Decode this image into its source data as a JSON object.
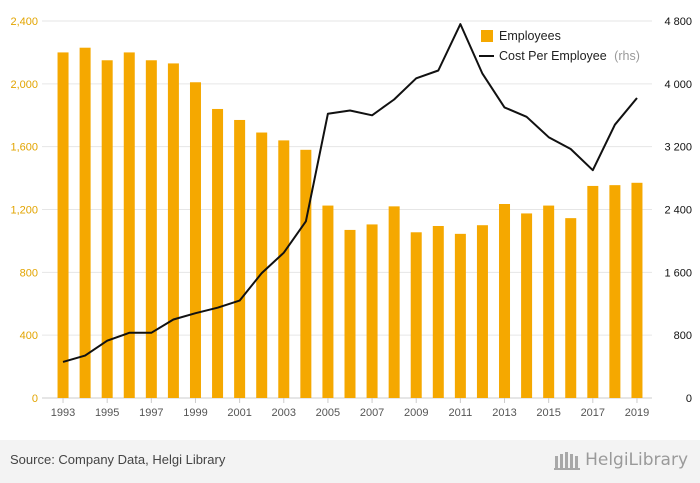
{
  "chart_data": {
    "type": "bar",
    "categories": [
      "1993",
      "1994",
      "1995",
      "1996",
      "1997",
      "1998",
      "1999",
      "2000",
      "2001",
      "2002",
      "2003",
      "2004",
      "2005",
      "2006",
      "2007",
      "2008",
      "2009",
      "2010",
      "2011",
      "2012",
      "2013",
      "2014",
      "2015",
      "2016",
      "2017",
      "2018",
      "2019"
    ],
    "x_tick_labels": [
      "1993",
      "1995",
      "1997",
      "1999",
      "2001",
      "2003",
      "2005",
      "2007",
      "2009",
      "2011",
      "2013",
      "2015",
      "2017",
      "2019"
    ],
    "series": [
      {
        "name": "Employees",
        "type": "bar",
        "axis": "left",
        "color": "#f5a800",
        "values": [
          2200,
          2230,
          2150,
          2200,
          2150,
          2130,
          2010,
          1840,
          1770,
          1690,
          1640,
          1580,
          1225,
          1070,
          1105,
          1220,
          1055,
          1095,
          1045,
          1100,
          1235,
          1175,
          1225,
          1145,
          1350,
          1355,
          1370
        ]
      },
      {
        "name": "Cost Per Employee",
        "name_suffix": "(rhs)",
        "type": "line",
        "axis": "right",
        "color": "#111111",
        "values": [
          460,
          540,
          730,
          830,
          830,
          1000,
          1080,
          1150,
          1240,
          1590,
          1850,
          2250,
          3620,
          3660,
          3600,
          3800,
          4070,
          4170,
          4760,
          4130,
          3700,
          3580,
          3320,
          3170,
          2900,
          3480,
          3820
        ]
      }
    ],
    "y_left": {
      "ylim": [
        0,
        2400
      ],
      "ticks": [
        "0",
        "400",
        "800",
        "1,200",
        "1,600",
        "2,000",
        "2,400"
      ],
      "tick_values": [
        0,
        400,
        800,
        1200,
        1600,
        2000,
        2400
      ]
    },
    "y_right": {
      "ylim": [
        0,
        4800
      ],
      "ticks": [
        "0",
        "800",
        "1 600",
        "2 400",
        "3 200",
        "4 000",
        "4 800"
      ],
      "tick_values": [
        0,
        800,
        1600,
        2400,
        3200,
        4000,
        4800
      ]
    },
    "legend_position": "top-right",
    "grid": true
  },
  "footer": {
    "source": "Source: Company Data, Helgi Library",
    "logo_text": "HelgiLibrary"
  }
}
